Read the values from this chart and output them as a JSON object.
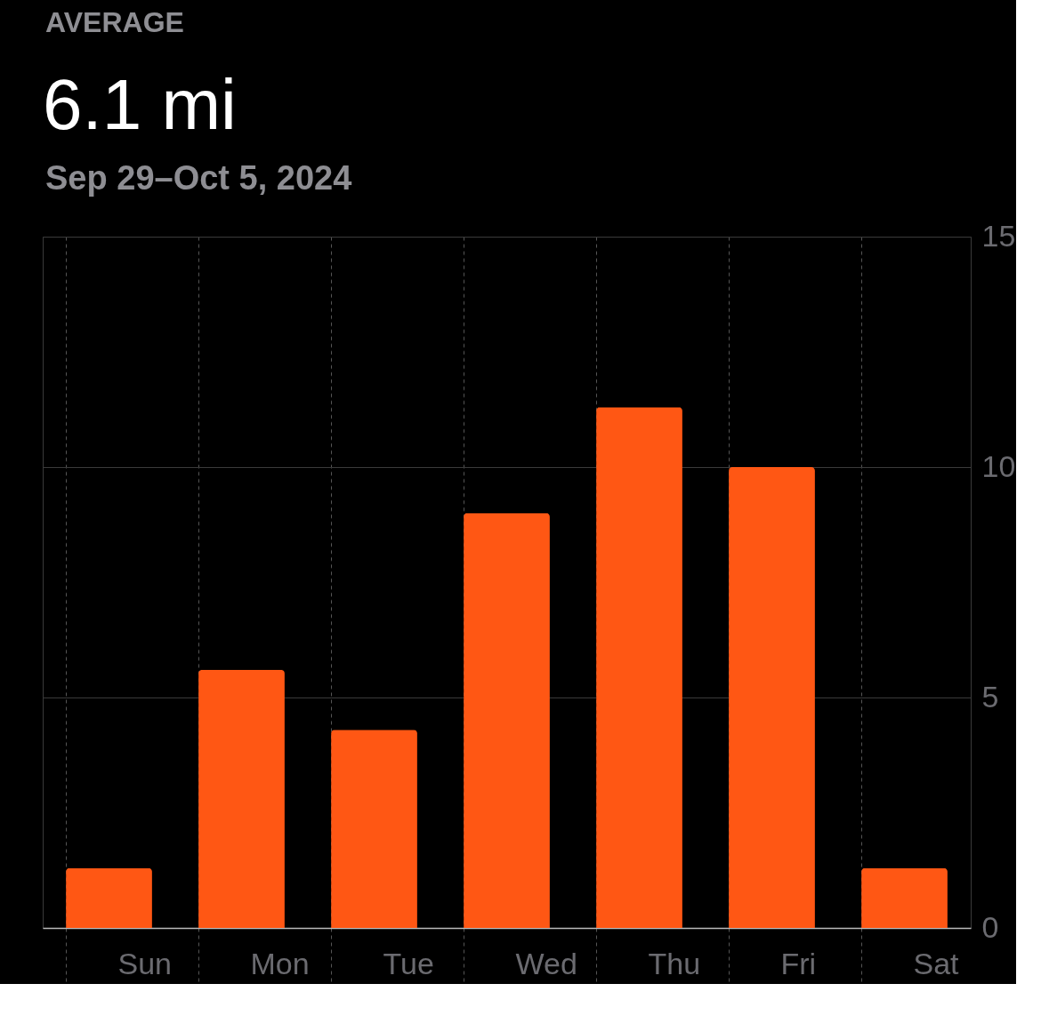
{
  "chart_data": {
    "type": "bar",
    "annotations": [
      "AVERAGE"
    ],
    "title": "6.1 mi",
    "subtitle": "Sep 29–Oct 5, 2024",
    "categories": [
      "Sun",
      "Mon",
      "Tue",
      "Wed",
      "Thu",
      "Fri",
      "Sat"
    ],
    "values": [
      1.3,
      5.6,
      4.3,
      9.0,
      11.3,
      10.0,
      1.3
    ],
    "color": "#ff5714",
    "ylim": [
      0,
      15
    ],
    "yticks": [
      0,
      5,
      10,
      15
    ],
    "grid": true
  }
}
